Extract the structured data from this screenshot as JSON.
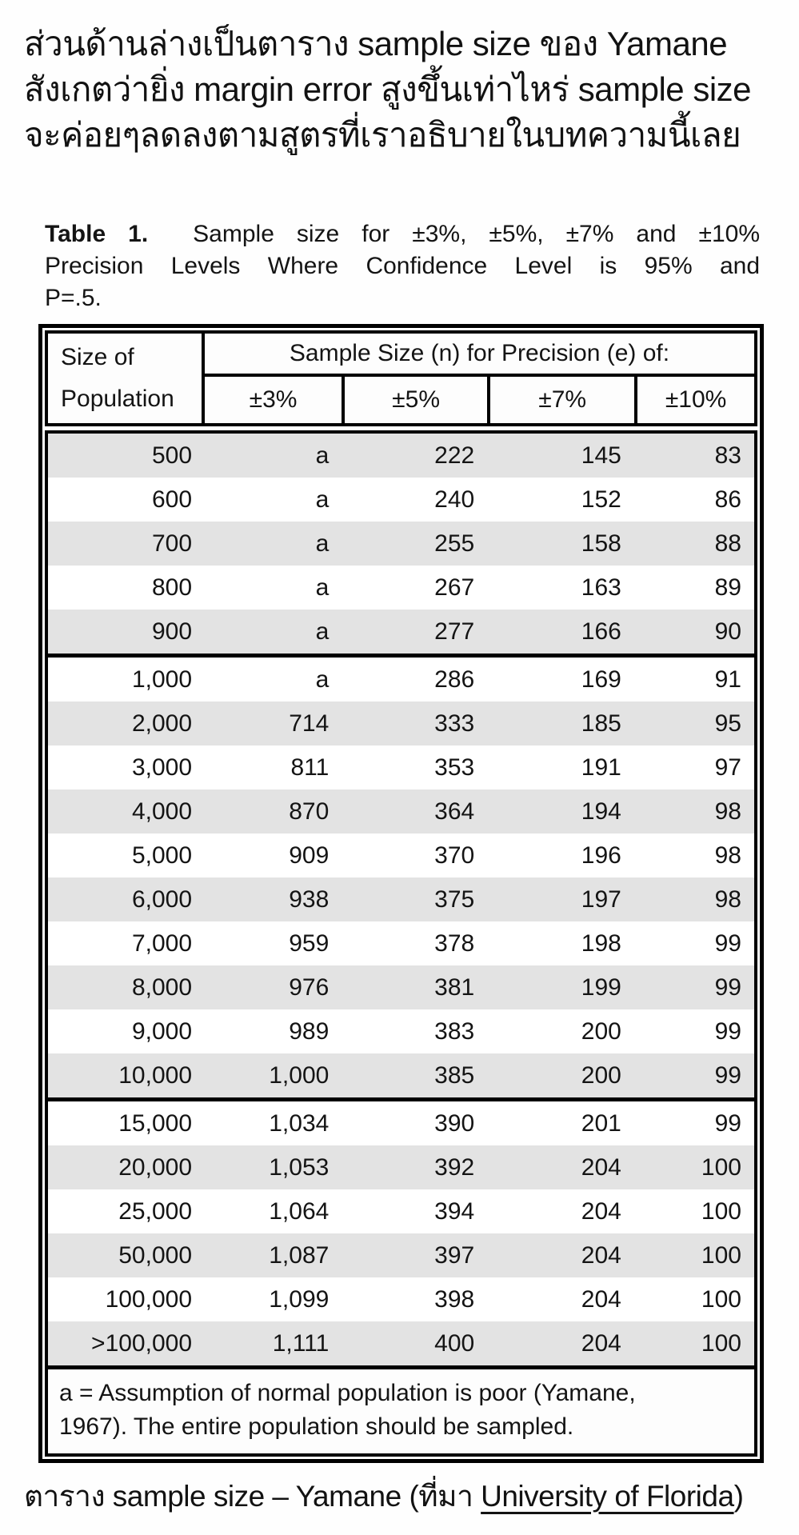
{
  "intro": {
    "lines": [
      "ส่วนด้านล่างเป็นตาราง sample size ของ Yamane",
      "สังเกตว่ายิ่ง margin error สูงขึ้นเท่าไหร่ sample size",
      "จะค่อยๆลดลงตามสูตรที่เราอธิบายในบทความนี้เลย"
    ]
  },
  "table": {
    "caption": {
      "label": "Table 1.",
      "line1_rest": "Sample size for ±3%, ±5%, ±7% and ±10%",
      "line2": "Precision Levels Where Confidence Level is 95% and",
      "line3": "P=.5."
    },
    "header": {
      "row_label_line1": "Size of",
      "row_label_line2": "Population",
      "group_label": "Sample Size (n) for Precision (e) of:",
      "columns": [
        "±3%",
        "±5%",
        "±7%",
        "±10%"
      ]
    },
    "rows": [
      [
        "500",
        "a",
        "222",
        "145",
        "83"
      ],
      [
        "600",
        "a",
        "240",
        "152",
        "86"
      ],
      [
        "700",
        "a",
        "255",
        "158",
        "88"
      ],
      [
        "800",
        "a",
        "267",
        "163",
        "89"
      ],
      [
        "900",
        "a",
        "277",
        "166",
        "90"
      ],
      [
        "1,000",
        "a",
        "286",
        "169",
        "91"
      ],
      [
        "2,000",
        "714",
        "333",
        "185",
        "95"
      ],
      [
        "3,000",
        "811",
        "353",
        "191",
        "97"
      ],
      [
        "4,000",
        "870",
        "364",
        "194",
        "98"
      ],
      [
        "5,000",
        "909",
        "370",
        "196",
        "98"
      ],
      [
        "6,000",
        "938",
        "375",
        "197",
        "98"
      ],
      [
        "7,000",
        "959",
        "378",
        "198",
        "99"
      ],
      [
        "8,000",
        "976",
        "381",
        "199",
        "99"
      ],
      [
        "9,000",
        "989",
        "383",
        "200",
        "99"
      ],
      [
        "10,000",
        "1,000",
        "385",
        "200",
        "99"
      ],
      [
        "15,000",
        "1,034",
        "390",
        "201",
        "99"
      ],
      [
        "20,000",
        "1,053",
        "392",
        "204",
        "100"
      ],
      [
        "25,000",
        "1,064",
        "394",
        "204",
        "100"
      ],
      [
        "50,000",
        "1,087",
        "397",
        "204",
        "100"
      ],
      [
        "100,000",
        "1,099",
        "398",
        "204",
        "100"
      ],
      [
        ">100,000",
        "1,111",
        "400",
        "204",
        "100"
      ]
    ],
    "section_breaks": [
      5,
      15
    ],
    "footnote_lines": [
      "a = Assumption of normal population is poor (Yamane,",
      "1967).  The entire population should be sampled."
    ]
  },
  "bottom_caption": {
    "prefix": "ตาราง sample size – Yamane (ที่มา ",
    "link": "University of Florida",
    "suffix": ")"
  },
  "colors": {
    "row_shade": "#e3e3e3",
    "border": "#000000",
    "text": "#141414"
  }
}
